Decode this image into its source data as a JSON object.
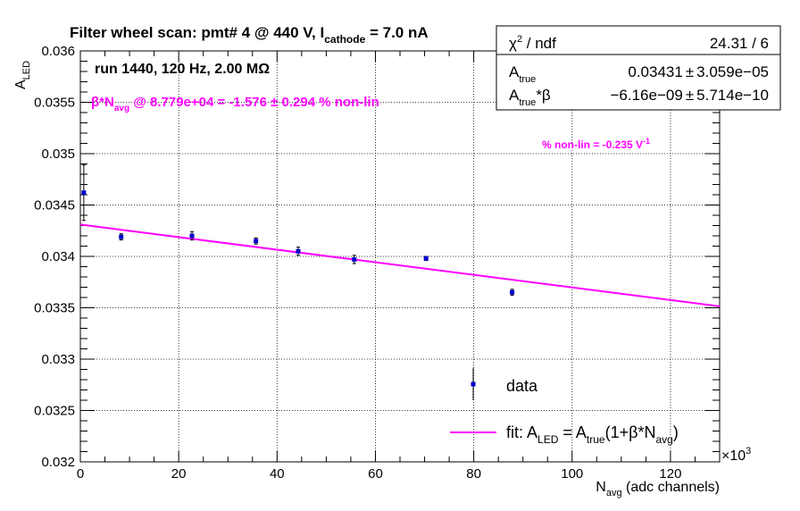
{
  "chart_data": {
    "type": "scatter",
    "title_main": "Filter wheel scan: pmt#   4 @   440 V, I",
    "title_sub": "cathode",
    "title_tail": " = 7.0 nA",
    "ylabel_main": "A",
    "ylabel_sub": "LED",
    "xlabel_main": "N",
    "xlabel_sub": "avg",
    "xlabel_tail": " (adc channels)",
    "x_exponent_label": "×10",
    "x_exponent_power": "3",
    "xlim": [
      0,
      130000
    ],
    "ylim": [
      0.032,
      0.036
    ],
    "grid": true,
    "x_ticks": [
      0,
      20000,
      40000,
      60000,
      80000,
      100000,
      120000
    ],
    "x_tick_labels": [
      "0",
      "20",
      "40",
      "60",
      "80",
      "100",
      "120"
    ],
    "y_ticks": [
      0.032,
      0.0325,
      0.033,
      0.0335,
      0.034,
      0.0345,
      0.035,
      0.0355,
      0.036
    ],
    "y_tick_labels": [
      "0.032",
      "0.0325",
      "0.033",
      "0.0335",
      "0.034",
      "0.0345",
      "0.035",
      "0.0355",
      "0.036"
    ],
    "series": [
      {
        "name": "data",
        "color": "#0000cc",
        "x": [
          700,
          8300,
          22700,
          35700,
          44300,
          55700,
          70300,
          87800
        ],
        "y": [
          0.03462,
          0.03419,
          0.0342,
          0.03415,
          0.03405,
          0.03397,
          0.03398,
          0.03365
        ],
        "yerr": [
          0.00027,
          3e-05,
          4e-05,
          3e-05,
          4e-05,
          4e-05,
          2e-05,
          3e-05
        ]
      },
      {
        "name": "fit",
        "color": "#ff00ff",
        "x": [
          0,
          130000
        ],
        "y": [
          0.03431,
          0.033514
        ]
      }
    ],
    "legend": {
      "position": "bottom-right",
      "data_label": "data",
      "fit_label_parts": [
        "fit: A",
        "LED",
        " = A",
        "true",
        "(1+β*N",
        "avg",
        ")"
      ]
    },
    "stats": {
      "chi2_label": "χ",
      "chi2_sup": "2",
      "chi2_tail": " / ndf",
      "chi2_value": "24.31 / 6",
      "atrue_label": "A",
      "atrue_sub": "true",
      "atrue_value": "0.03431",
      "atrue_error": "3.059e−05",
      "atb_label": "A",
      "atb_sub": "true",
      "atb_tail": "*β",
      "atb_value": "−6.16e−09",
      "atb_error": "5.714e−10",
      "pm": "±"
    },
    "annotations": {
      "run": "run 1440, 120 Hz, 2.00 MΩ",
      "beta_prefix": "β*N",
      "beta_sub": "avg",
      "beta_tail": " @ 8.779e+04 = -1.576  ± 0.294 % non-lin",
      "nonlin_text": "% non-lin = -0.235 V",
      "nonlin_sup": "-1",
      "magenta": "#ff00ff"
    }
  }
}
